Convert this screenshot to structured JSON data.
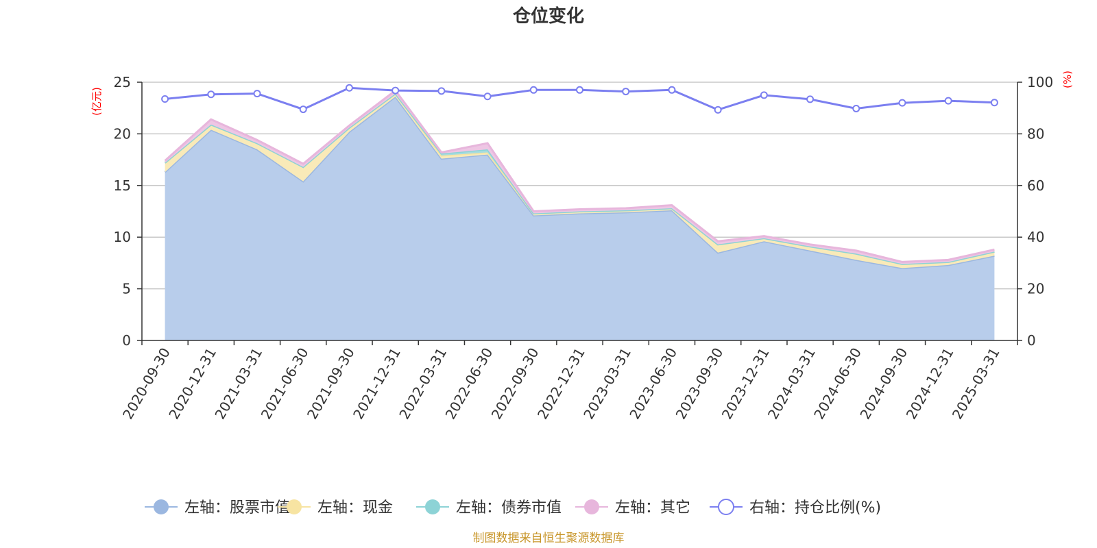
{
  "chart_data": {
    "type": "area",
    "title": "仓位变化",
    "left_axis_unit": "(亿元)",
    "right_axis_unit": "(%)",
    "left_axis": {
      "min": 0,
      "max": 25,
      "ticks": [
        0,
        5,
        10,
        15,
        20,
        25
      ]
    },
    "right_axis": {
      "min": 0,
      "max": 100,
      "ticks": [
        0,
        20,
        40,
        60,
        80,
        100
      ]
    },
    "grid": true,
    "legend_position": "bottom",
    "categories": [
      "2020-09-30",
      "2020-12-31",
      "2021-03-31",
      "2021-06-30",
      "2021-09-30",
      "2021-12-31",
      "2022-03-31",
      "2022-06-30",
      "2022-09-30",
      "2022-12-31",
      "2023-03-31",
      "2023-06-30",
      "2023-09-30",
      "2023-12-31",
      "2024-03-31",
      "2024-06-30",
      "2024-09-30",
      "2024-12-31",
      "2025-03-31"
    ],
    "stacked_series": [
      {
        "name": "左轴：股票市值",
        "color": "#9bb7e0",
        "fill": "#b8cdeb",
        "values": [
          16.3,
          20.4,
          18.5,
          15.4,
          20.2,
          23.6,
          17.6,
          18.0,
          12.1,
          12.3,
          12.4,
          12.6,
          8.5,
          9.6,
          8.7,
          7.8,
          7.0,
          7.3,
          8.2
        ]
      },
      {
        "name": "左轴：现金",
        "color": "#f7e4a2",
        "fill": "#f9eab8",
        "values": [
          0.9,
          0.5,
          0.6,
          1.4,
          0.4,
          0.3,
          0.3,
          0.2,
          0.2,
          0.2,
          0.2,
          0.2,
          0.8,
          0.3,
          0.4,
          0.6,
          0.4,
          0.3,
          0.4
        ]
      },
      {
        "name": "左轴：债券市值",
        "color": "#8dd3d6",
        "fill": "#a6dcdf",
        "values": [
          0,
          0,
          0,
          0,
          0,
          0,
          0.2,
          0.3,
          0,
          0,
          0,
          0,
          0,
          0,
          0,
          0,
          0,
          0,
          0
        ]
      },
      {
        "name": "左轴：其它",
        "color": "#e7b6dc",
        "fill": "#eec6e4",
        "values": [
          0.2,
          0.5,
          0.3,
          0.3,
          0.2,
          0.3,
          0.1,
          0.6,
          0.2,
          0.2,
          0.2,
          0.3,
          0.3,
          0.2,
          0.2,
          0.3,
          0.2,
          0.2,
          0.2
        ]
      }
    ],
    "line_series": {
      "name": "右轴：持仓比例(%)",
      "color": "#7b7ff0",
      "axis": "right",
      "values": [
        93.5,
        95.3,
        95.6,
        89.5,
        97.8,
        96.8,
        96.6,
        94.5,
        97.0,
        97.0,
        96.4,
        97.0,
        89.3,
        95.0,
        93.4,
        89.8,
        92.0,
        92.8,
        92.1
      ]
    },
    "source_note": "制图数据来自恒生聚源数据库"
  }
}
